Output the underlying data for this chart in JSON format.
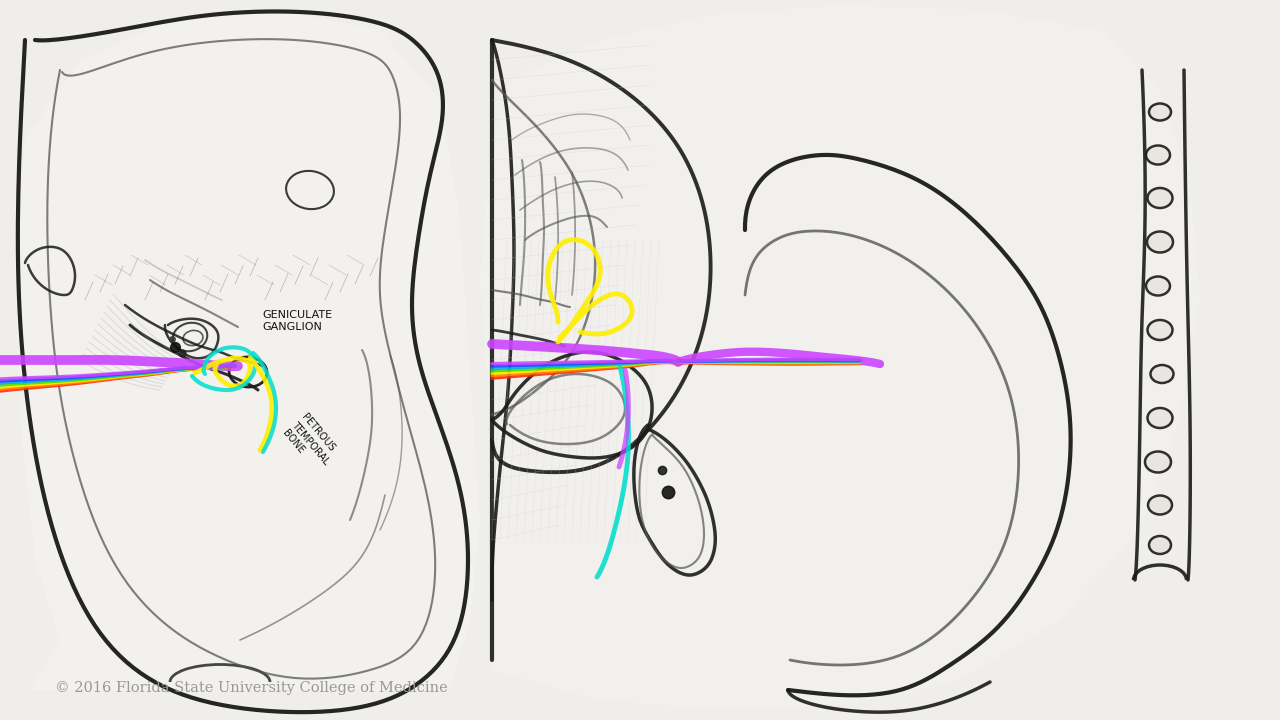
{
  "background_color": "#f0eeeb",
  "fig_width": 12.8,
  "fig_height": 7.2,
  "dpi": 100,
  "copyright_text": "© 2016 Florida State University College of Medicine",
  "copyright_fontsize": 10.5,
  "copyright_color": "#999999",
  "sketch_dark": "#1a1a1a",
  "sketch_mid": "#555555",
  "sketch_light": "#aaaaaa",
  "label_geniculate": "GENICULATE\nGANGLION",
  "label_petrous": "PETROUS\nTEMPORAL\nBONE",
  "nerve_purple": "#cc44ff",
  "nerve_yellow": "#ffee00",
  "nerve_cyan": "#00ddcc",
  "nerve_green": "#44dd00",
  "nerve_blue": "#2244ff",
  "nerve_rainbow": [
    "#ff2200",
    "#ff8800",
    "#ffee00",
    "#44dd00",
    "#00aaff",
    "#2244ff",
    "#cc44ff"
  ]
}
